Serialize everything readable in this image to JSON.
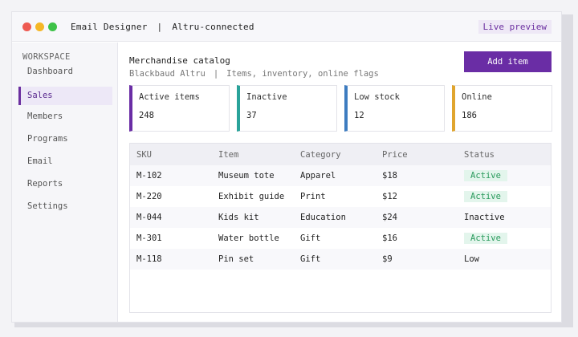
{
  "window": {
    "title": "Email Designer",
    "subtitle": "Altru-connected",
    "separator": "|",
    "live_preview": "Live preview"
  },
  "sidebar": {
    "heading": "WORKSPACE",
    "items": [
      {
        "label": "Dashboard",
        "active": false
      },
      {
        "label": "Sales",
        "active": true
      },
      {
        "label": "Members",
        "active": false
      },
      {
        "label": "Programs",
        "active": false
      },
      {
        "label": "Email",
        "active": false
      },
      {
        "label": "Reports",
        "active": false
      },
      {
        "label": "Settings",
        "active": false
      }
    ]
  },
  "main": {
    "title": "Merchandise catalog",
    "subtitle_left": "Blackbaud Altru",
    "subtitle_sep": "|",
    "subtitle_right": "Items, inventory, online flags",
    "add_button": "Add item"
  },
  "stats": [
    {
      "label": "Active items",
      "value": "248",
      "color": "#6a2da5"
    },
    {
      "label": "Inactive",
      "value": "37",
      "color": "#2aa39a"
    },
    {
      "label": "Low stock",
      "value": "12",
      "color": "#3d7cc0"
    },
    {
      "label": "Online",
      "value": "186",
      "color": "#e0a52e"
    }
  ],
  "table": {
    "headers": [
      "SKU",
      "Item",
      "Category",
      "Price",
      "Status"
    ],
    "rows": [
      {
        "sku": "M-102",
        "item": "Museum tote",
        "category": "Apparel",
        "price": "$18",
        "status": "Active"
      },
      {
        "sku": "M-220",
        "item": "Exhibit guide",
        "category": "Print",
        "price": "$12",
        "status": "Active"
      },
      {
        "sku": "M-044",
        "item": "Kids kit",
        "category": "Education",
        "price": "$24",
        "status": "Inactive"
      },
      {
        "sku": "M-301",
        "item": "Water bottle",
        "category": "Gift",
        "price": "$16",
        "status": "Active"
      },
      {
        "sku": "M-118",
        "item": "Pin set",
        "category": "Gift",
        "price": "$9",
        "status": "Low"
      }
    ]
  }
}
